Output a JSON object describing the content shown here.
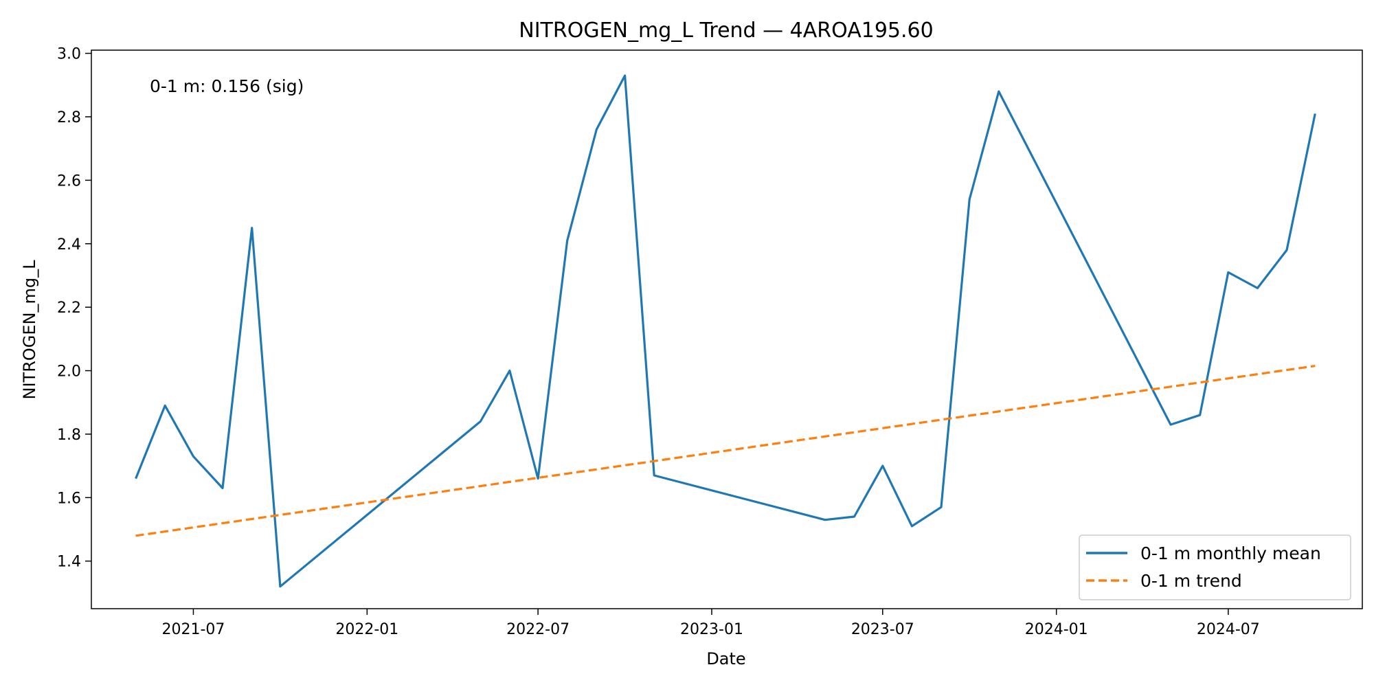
{
  "chart_data": {
    "type": "line",
    "title": "NITROGEN_mg_L Trend — 4AROA195.60",
    "xlabel": "Date",
    "ylabel": "NITROGEN_mg_L",
    "ylim": [
      1.25,
      3.01
    ],
    "xlim": [
      "2021-03-15",
      "2024-11-20"
    ],
    "grid": false,
    "legend_position": "lower-right",
    "annotation": "0-1 m: 0.156 (sig)",
    "x_ticks": [
      "2021-07",
      "2022-01",
      "2022-07",
      "2023-01",
      "2023-07",
      "2024-01",
      "2024-07"
    ],
    "y_ticks": [
      1.4,
      1.6,
      1.8,
      2.0,
      2.2,
      2.4,
      2.6,
      2.8,
      3.0
    ],
    "series": [
      {
        "name": "0-1 m monthly mean",
        "style": "solid",
        "color": "#1f77b4",
        "points": [
          {
            "x": "2021-05-01",
            "y": 1.66
          },
          {
            "x": "2021-06-01",
            "y": 1.89
          },
          {
            "x": "2021-07-01",
            "y": 1.73
          },
          {
            "x": "2021-08-01",
            "y": 1.63
          },
          {
            "x": "2021-09-01",
            "y": 2.45
          },
          {
            "x": "2021-10-01",
            "y": 1.32
          },
          {
            "x": "2022-05-01",
            "y": 1.84
          },
          {
            "x": "2022-06-01",
            "y": 2.0
          },
          {
            "x": "2022-07-01",
            "y": 1.66
          },
          {
            "x": "2022-08-01",
            "y": 2.41
          },
          {
            "x": "2022-09-01",
            "y": 2.76
          },
          {
            "x": "2022-10-01",
            "y": 2.93
          },
          {
            "x": "2022-11-01",
            "y": 1.67
          },
          {
            "x": "2023-05-01",
            "y": 1.53
          },
          {
            "x": "2023-06-01",
            "y": 1.54
          },
          {
            "x": "2023-07-01",
            "y": 1.7
          },
          {
            "x": "2023-08-01",
            "y": 1.51
          },
          {
            "x": "2023-09-01",
            "y": 1.57
          },
          {
            "x": "2023-10-01",
            "y": 2.54
          },
          {
            "x": "2023-11-01",
            "y": 2.88
          },
          {
            "x": "2024-05-01",
            "y": 1.83
          },
          {
            "x": "2024-06-01",
            "y": 1.86
          },
          {
            "x": "2024-07-01",
            "y": 2.31
          },
          {
            "x": "2024-08-01",
            "y": 2.26
          },
          {
            "x": "2024-09-01",
            "y": 2.38
          },
          {
            "x": "2024-10-01",
            "y": 2.81
          }
        ]
      },
      {
        "name": "0-1 m trend",
        "style": "dashed",
        "color": "#ff7f0e",
        "points": [
          {
            "x": "2021-05-01",
            "y": 1.48
          },
          {
            "x": "2024-10-01",
            "y": 2.015
          }
        ]
      }
    ]
  }
}
